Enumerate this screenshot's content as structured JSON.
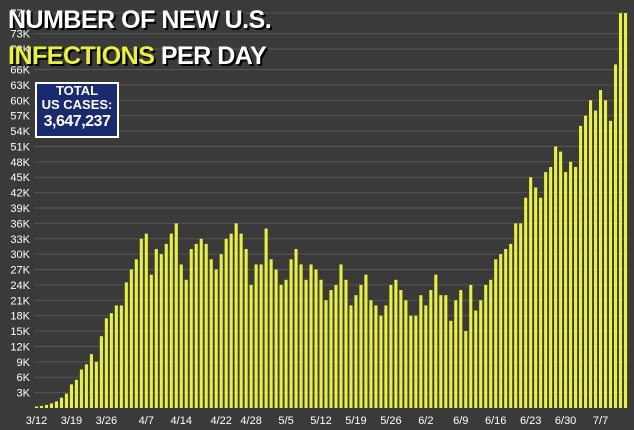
{
  "title_line1": "NUMBER OF NEW U.S.",
  "title_line2_highlight": "INFECTIONS",
  "title_line2_rest": "PER DAY",
  "total_box": {
    "line1": "TOTAL",
    "line2": "US CASES:",
    "value": "3,647,237",
    "bg": "#1a2a6e"
  },
  "colors": {
    "bar": "#e9f23a",
    "bar_edge": "#b5bb20",
    "background": "#3a3a3a",
    "grid": "#555555",
    "tick": "#ffffff"
  },
  "chart_data": {
    "type": "bar",
    "title": "NUMBER OF NEW U.S. INFECTIONS PER DAY",
    "ylim": [
      0,
      78000
    ],
    "y_ticks": [
      3000,
      6000,
      9000,
      12000,
      15000,
      18000,
      21000,
      24000,
      27000,
      30000,
      33000,
      36000,
      39000,
      42000,
      45000,
      48000,
      51000,
      54000,
      57000,
      60000,
      63000,
      66000,
      70000,
      73000,
      77000
    ],
    "y_tick_labels": [
      "3K",
      "6K",
      "9K",
      "12K",
      "15K",
      "18K",
      "21K",
      "24K",
      "27K",
      "30K",
      "33K",
      "36K",
      "39K",
      "42K",
      "45K",
      "48K",
      "51K",
      "54K",
      "57K",
      "60K",
      "63K",
      "66K",
      "70K",
      "73K",
      "77K"
    ],
    "x_tick_labels": [
      "3/12",
      "3/19",
      "3/26",
      "4/7",
      "4/14",
      "4/22",
      "4/28",
      "5/5",
      "5/12",
      "5/19",
      "5/26",
      "6/2",
      "6/9",
      "6/16",
      "6/23",
      "6/30",
      "7/7"
    ],
    "x_tick_index": [
      0,
      7,
      14,
      22,
      29,
      37,
      43,
      50,
      57,
      64,
      71,
      78,
      85,
      92,
      99,
      106,
      113
    ],
    "values": [
      300,
      400,
      600,
      900,
      1300,
      2000,
      2800,
      4600,
      5500,
      7500,
      8500,
      10500,
      9000,
      14000,
      17500,
      18500,
      20000,
      20000,
      24500,
      27000,
      29000,
      33000,
      34000,
      26000,
      31000,
      30000,
      32000,
      34000,
      36000,
      28000,
      25000,
      31000,
      32000,
      33000,
      32000,
      29000,
      27000,
      30000,
      33000,
      34000,
      36000,
      34000,
      31000,
      24000,
      28000,
      28000,
      35000,
      29000,
      27000,
      24000,
      25000,
      29000,
      31000,
      28000,
      25000,
      28000,
      27000,
      25000,
      21000,
      23000,
      24000,
      28000,
      25000,
      20000,
      22000,
      24000,
      26000,
      21000,
      20000,
      18000,
      20000,
      24000,
      25000,
      23000,
      21000,
      18000,
      18000,
      22000,
      20000,
      23000,
      26000,
      22000,
      22000,
      17000,
      21000,
      23000,
      15000,
      24000,
      19000,
      21000,
      24000,
      25000,
      29000,
      30000,
      31000,
      32000,
      36000,
      36000,
      41000,
      45000,
      43000,
      41000,
      46000,
      47000,
      51000,
      50000,
      46000,
      48000,
      47000,
      55000,
      57000,
      60000,
      58000,
      62000,
      60000,
      56000,
      67000,
      77000,
      77000
    ]
  }
}
